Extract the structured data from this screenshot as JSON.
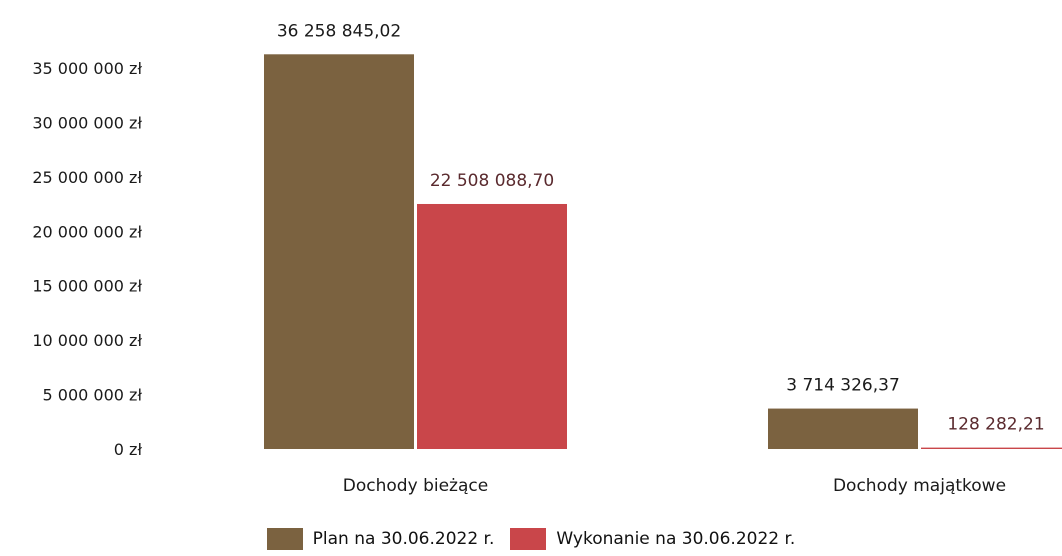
{
  "chart_data": {
    "type": "bar",
    "categories": [
      "Dochody bieżące",
      "Dochody majątkowe"
    ],
    "series": [
      {
        "name": "Plan na 30.06.2022 r.",
        "color": "#7b6240",
        "values": [
          36258845.02,
          3714326.37
        ],
        "labels": [
          "36 258 845,02",
          "3 714 326,37"
        ]
      },
      {
        "name": "Wykonanie na 30.06.2022 r.",
        "color": "#c9464a",
        "values": [
          22508088.7,
          128282.21
        ],
        "labels": [
          "22 508 088,70",
          "128 282,21"
        ]
      }
    ],
    "ylim": [
      0,
      35000000
    ],
    "yticks": [
      0,
      5000000,
      10000000,
      15000000,
      20000000,
      25000000,
      30000000,
      35000000
    ],
    "ytick_labels": [
      "0 zł",
      "5 000 000 zł",
      "10 000 000 zł",
      "15 000 000 zł",
      "20 000 000 zł",
      "25 000 000 zł",
      "30 000 000 zł",
      "35 000 000 zł"
    ],
    "grid": false,
    "legend_position": "bottom"
  }
}
